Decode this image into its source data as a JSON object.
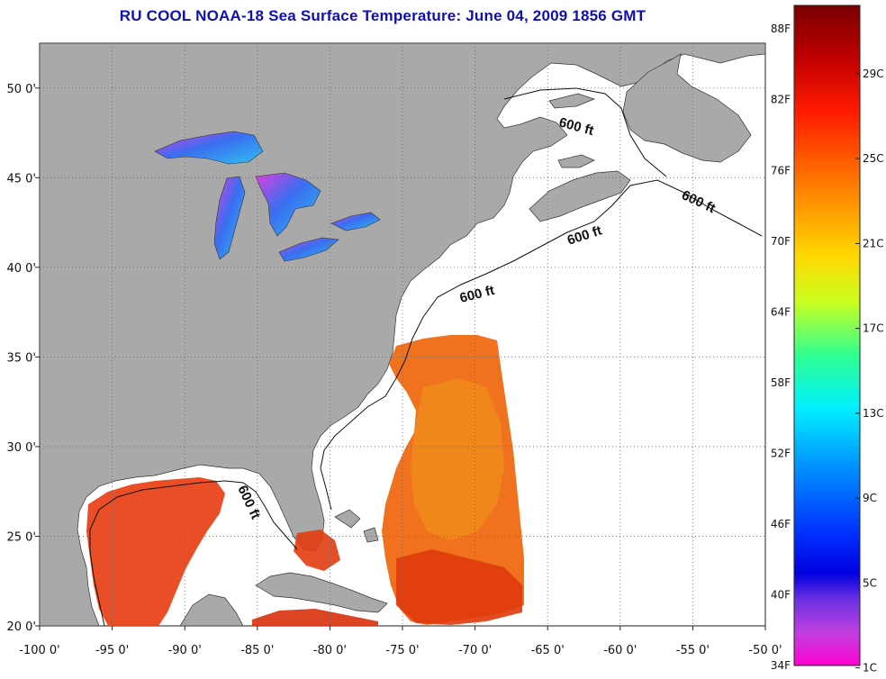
{
  "title": "RU COOL  NOAA-18  Sea Surface Temperature:  June 04, 2009 1856 GMT",
  "map": {
    "lon_range": [
      -100,
      -50
    ],
    "lat_range": [
      20,
      52.5
    ],
    "x_ticks": [
      "-100 0'",
      "-95 0'",
      "-90 0'",
      "-85 0'",
      "-80 0'",
      "-75 0'",
      "-70 0'",
      "-65 0'",
      "-60 0'",
      "-55 0'",
      "-50 0'"
    ],
    "y_ticks": [
      "50 0'",
      "45 0'",
      "40 0'",
      "35 0'",
      "30 0'",
      "25 0'",
      "20 0'"
    ],
    "grid": true,
    "contour_labels": [
      "600 ft",
      "600 ft",
      "600 ft",
      "600 ft",
      "600 ft"
    ],
    "colors": {
      "land": "#a9a9a9",
      "water_nodata": "#ffffff",
      "warm_sst": "#ee4a10",
      "great_lakes": "#3a8df0"
    }
  },
  "colorbar": {
    "fahrenheit_labels": [
      "88F",
      "82F",
      "76F",
      "70F",
      "64F",
      "58F",
      "52F",
      "46F",
      "40F",
      "34F"
    ],
    "celsius_labels": [
      "29C",
      "25C",
      "21C",
      "17C",
      "13C",
      "9C",
      "5C",
      "1C"
    ],
    "range_f": [
      34,
      90
    ]
  }
}
